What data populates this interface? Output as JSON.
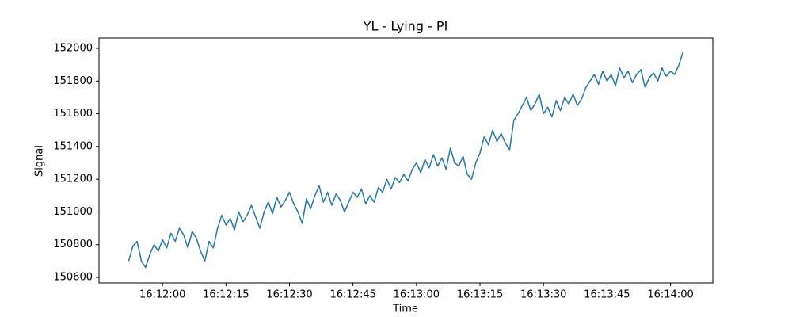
{
  "chart_data": {
    "type": "line",
    "title": "YL - Lying - PI",
    "xlabel": "Time",
    "ylabel": "Signal",
    "x": [
      "16:11:52",
      "16:11:53",
      "16:11:54",
      "16:11:55",
      "16:11:56",
      "16:11:57",
      "16:11:58",
      "16:11:59",
      "16:12:00",
      "16:12:01",
      "16:12:02",
      "16:12:03",
      "16:12:04",
      "16:12:05",
      "16:12:06",
      "16:12:07",
      "16:12:08",
      "16:12:09",
      "16:12:10",
      "16:12:11",
      "16:12:12",
      "16:12:13",
      "16:12:14",
      "16:12:15",
      "16:12:16",
      "16:12:17",
      "16:12:18",
      "16:12:19",
      "16:12:20",
      "16:12:21",
      "16:12:22",
      "16:12:23",
      "16:12:24",
      "16:12:25",
      "16:12:26",
      "16:12:27",
      "16:12:28",
      "16:12:29",
      "16:12:30",
      "16:12:31",
      "16:12:32",
      "16:12:33",
      "16:12:34",
      "16:12:35",
      "16:12:36",
      "16:12:37",
      "16:12:38",
      "16:12:39",
      "16:12:40",
      "16:12:41",
      "16:12:42",
      "16:12:43",
      "16:12:44",
      "16:12:45",
      "16:12:46",
      "16:12:47",
      "16:12:48",
      "16:12:49",
      "16:12:50",
      "16:12:51",
      "16:12:52",
      "16:12:53",
      "16:12:54",
      "16:12:55",
      "16:12:56",
      "16:12:57",
      "16:12:58",
      "16:12:59",
      "16:13:00",
      "16:13:01",
      "16:13:02",
      "16:13:03",
      "16:13:04",
      "16:13:05",
      "16:13:06",
      "16:13:07",
      "16:13:08",
      "16:13:09",
      "16:13:10",
      "16:13:11",
      "16:13:12",
      "16:13:13",
      "16:13:14",
      "16:13:15",
      "16:13:16",
      "16:13:17",
      "16:13:18",
      "16:13:19",
      "16:13:20",
      "16:13:21",
      "16:13:22",
      "16:13:23",
      "16:13:24",
      "16:13:25",
      "16:13:26",
      "16:13:27",
      "16:13:28",
      "16:13:29",
      "16:13:30",
      "16:13:31",
      "16:13:32",
      "16:13:33",
      "16:13:34",
      "16:13:35",
      "16:13:36",
      "16:13:37",
      "16:13:38",
      "16:13:39",
      "16:13:40",
      "16:13:41",
      "16:13:42",
      "16:13:43",
      "16:13:44",
      "16:13:45",
      "16:13:46",
      "16:13:47",
      "16:13:48",
      "16:13:49",
      "16:13:50",
      "16:13:51",
      "16:13:52",
      "16:13:53",
      "16:13:54",
      "16:13:55",
      "16:13:56",
      "16:13:57",
      "16:13:58",
      "16:13:59",
      "16:14:00",
      "16:14:01",
      "16:14:02",
      "16:14:03"
    ],
    "series": [
      {
        "name": "Signal",
        "color": "#1f77b4",
        "values": [
          150700,
          150790,
          150820,
          150700,
          150660,
          150740,
          150800,
          150760,
          150830,
          150780,
          150870,
          150820,
          150900,
          150860,
          150780,
          150880,
          150840,
          150760,
          150700,
          150820,
          150780,
          150900,
          150980,
          150920,
          150960,
          150890,
          151000,
          150940,
          150980,
          151040,
          150970,
          150900,
          151000,
          151060,
          150990,
          151090,
          151030,
          151070,
          151120,
          151050,
          151000,
          150930,
          151080,
          151020,
          151100,
          151160,
          151060,
          151120,
          151040,
          151110,
          151070,
          151000,
          151060,
          151120,
          151090,
          151140,
          151050,
          151100,
          151060,
          151150,
          151120,
          151200,
          151140,
          151210,
          151180,
          151230,
          151190,
          151260,
          151300,
          151240,
          151320,
          151270,
          151350,
          151280,
          151330,
          151260,
          151390,
          151300,
          151280,
          151340,
          151230,
          151200,
          151300,
          151360,
          151460,
          151410,
          151500,
          151430,
          151480,
          151420,
          151380,
          151560,
          151600,
          151650,
          151700,
          151620,
          151660,
          151720,
          151600,
          151640,
          151580,
          151680,
          151620,
          151700,
          151660,
          151720,
          151650,
          151690,
          151760,
          151800,
          151840,
          151780,
          151860,
          151800,
          151840,
          151770,
          151880,
          151820,
          151860,
          151790,
          151840,
          151870,
          151760,
          151820,
          151850,
          151800,
          151880,
          151830,
          151860,
          151840,
          151900,
          151980
        ]
      }
    ],
    "xlim": [
      "16:11:45",
      "16:14:10"
    ],
    "xticks": [
      "16:12:00",
      "16:12:15",
      "16:12:30",
      "16:12:45",
      "16:13:00",
      "16:13:15",
      "16:13:30",
      "16:13:45",
      "16:14:00"
    ],
    "ylim": [
      150566,
      152063
    ],
    "yticks": [
      150600,
      150800,
      151000,
      151200,
      151400,
      151600,
      151800,
      152000
    ],
    "grid": false
  }
}
